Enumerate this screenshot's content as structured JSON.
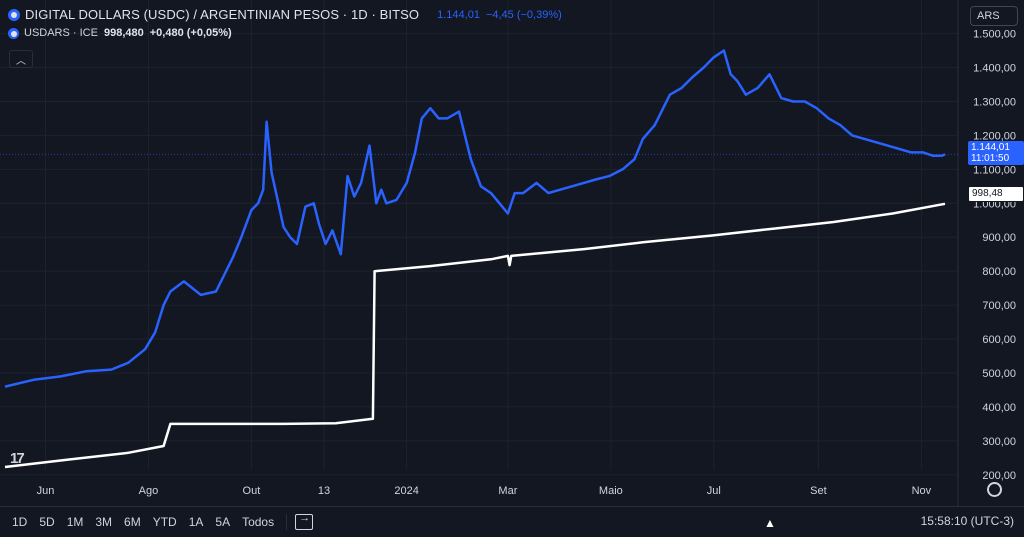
{
  "header": {
    "title": "DIGITAL DOLLARS (USDC) / ARGENTINIAN PESOS · 1D · BITSO",
    "price": "1.144,01",
    "change": "−4,45 (−0,39%)",
    "sub_symbol": "USDARS · ICE",
    "sub_price": "998,480",
    "sub_change": "+0,480 (+0,05%)",
    "currency": "ARS",
    "collapse_icon": "chevron-up-icon"
  },
  "price_tags": {
    "usdc_price": "1.144,01",
    "usdc_timer": "11:01:50",
    "usdars_price": "998,48"
  },
  "bottom_bar": {
    "ranges": [
      "1D",
      "5D",
      "1M",
      "3M",
      "6M",
      "YTD",
      "1A",
      "5A",
      "Todos"
    ],
    "clock": "15:58:10 (UTC-3)"
  },
  "colors": {
    "background": "#131722",
    "usdc_line": "#2962ff",
    "usdars_line": "#ffffff",
    "grid": "#1e222d"
  },
  "chart_data": {
    "type": "line",
    "x_tick_labels": [
      "Jun",
      "Ago",
      "Out",
      "13",
      "2024",
      "Mar",
      "Maio",
      "Jul",
      "Set",
      "Nov"
    ],
    "y_tick_labels": [
      "1.500,00",
      "1.400,00",
      "1.300,00",
      "1.200,00",
      "1.100,00",
      "1.000,00",
      "900,00",
      "800,00",
      "700,00",
      "600,00",
      "500,00",
      "400,00",
      "300,00",
      "200,00"
    ],
    "ylim": [
      170,
      1540
    ],
    "grid": true,
    "series": [
      {
        "name": "DIGITAL DOLLARS (USDC) / ARGENTINIAN PESOS",
        "color": "#2962ff",
        "x": [
          "2023-05-08",
          "2023-05-25",
          "2023-06-10",
          "2023-06-25",
          "2023-07-10",
          "2023-07-20",
          "2023-07-30",
          "2023-08-05",
          "2023-08-10",
          "2023-08-14",
          "2023-08-22",
          "2023-09-01",
          "2023-09-10",
          "2023-09-20",
          "2023-09-25",
          "2023-10-01",
          "2023-10-05",
          "2023-10-08",
          "2023-10-10",
          "2023-10-13",
          "2023-10-17",
          "2023-10-20",
          "2023-10-24",
          "2023-10-28",
          "2023-11-02",
          "2023-11-07",
          "2023-11-10",
          "2023-11-14",
          "2023-11-18",
          "2023-11-23",
          "2023-11-27",
          "2023-12-01",
          "2023-12-05",
          "2023-12-10",
          "2023-12-14",
          "2023-12-17",
          "2023-12-20",
          "2023-12-26",
          "2024-01-01",
          "2024-01-06",
          "2024-01-10",
          "2024-01-15",
          "2024-01-20",
          "2024-01-25",
          "2024-02-01",
          "2024-02-08",
          "2024-02-14",
          "2024-02-20",
          "2024-02-25",
          "2024-03-01",
          "2024-03-05",
          "2024-03-10",
          "2024-03-18",
          "2024-03-25",
          "2024-04-01",
          "2024-04-08",
          "2024-04-15",
          "2024-04-22",
          "2024-04-30",
          "2024-05-08",
          "2024-05-15",
          "2024-05-20",
          "2024-05-27",
          "2024-06-05",
          "2024-06-12",
          "2024-06-18",
          "2024-06-25",
          "2024-07-01",
          "2024-07-07",
          "2024-07-11",
          "2024-07-15",
          "2024-07-20",
          "2024-07-27",
          "2024-08-03",
          "2024-08-10",
          "2024-08-17",
          "2024-08-24",
          "2024-08-31",
          "2024-09-07",
          "2024-09-14",
          "2024-09-21",
          "2024-09-28",
          "2024-10-05",
          "2024-10-12",
          "2024-10-19",
          "2024-10-26",
          "2024-11-02",
          "2024-11-08",
          "2024-11-13",
          "2024-11-15"
        ],
        "y": [
          460,
          480,
          490,
          505,
          510,
          530,
          570,
          620,
          700,
          740,
          770,
          730,
          740,
          840,
          900,
          980,
          1000,
          1040,
          1240,
          1090,
          1000,
          930,
          900,
          880,
          990,
          1000,
          940,
          880,
          920,
          850,
          1080,
          1020,
          1060,
          1170,
          1000,
          1040,
          1000,
          1010,
          1060,
          1150,
          1250,
          1280,
          1250,
          1250,
          1270,
          1130,
          1050,
          1030,
          1000,
          970,
          1030,
          1030,
          1060,
          1030,
          1040,
          1050,
          1060,
          1070,
          1080,
          1100,
          1130,
          1190,
          1230,
          1320,
          1340,
          1370,
          1400,
          1430,
          1450,
          1380,
          1360,
          1320,
          1340,
          1380,
          1310,
          1300,
          1300,
          1280,
          1250,
          1230,
          1200,
          1190,
          1180,
          1170,
          1160,
          1150,
          1150,
          1140,
          1140,
          1144
        ]
      },
      {
        "name": "USDARS · ICE",
        "color": "#ffffff",
        "x": [
          "2023-05-08",
          "2023-06-15",
          "2023-07-20",
          "2023-08-10",
          "2023-08-14",
          "2023-09-15",
          "2023-10-20",
          "2023-11-20",
          "2023-12-12",
          "2023-12-13",
          "2024-01-15",
          "2024-02-20",
          "2024-03-01",
          "2024-03-02",
          "2024-03-03",
          "2024-04-15",
          "2024-05-20",
          "2024-06-30",
          "2024-08-05",
          "2024-09-10",
          "2024-10-15",
          "2024-11-15"
        ],
        "y": [
          223,
          245,
          265,
          285,
          350,
          350,
          350,
          352,
          365,
          800,
          815,
          835,
          845,
          818,
          845,
          865,
          885,
          905,
          925,
          945,
          970,
          998.48
        ]
      }
    ]
  }
}
